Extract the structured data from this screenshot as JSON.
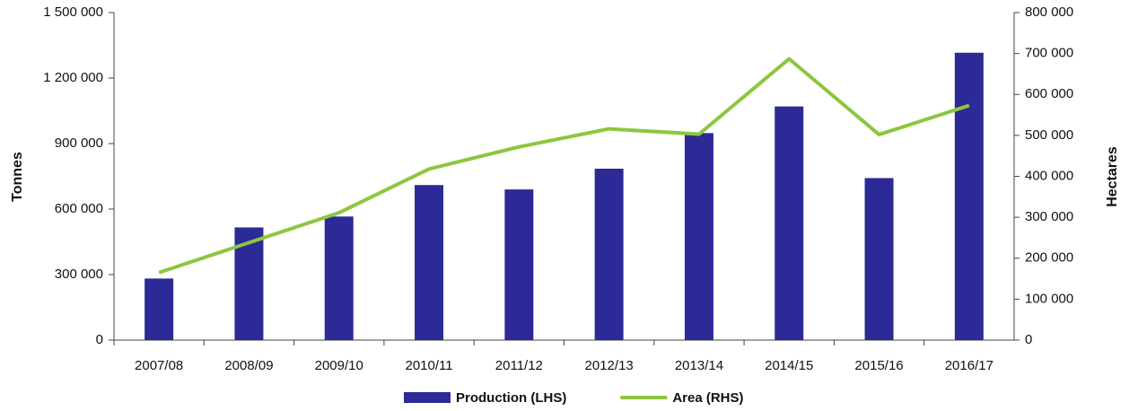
{
  "chart_data": {
    "type": "bar_line",
    "y_label": "Tonnes",
    "y2_label": "Hectares",
    "categories": [
      "2007/08",
      "2008/09",
      "2009/10",
      "2010/11",
      "2011/12",
      "2012/13",
      "2013/14",
      "2014/15",
      "2015/16",
      "2016/17"
    ],
    "series": [
      {
        "name": "Production (LHS)",
        "color": "#2c2a96",
        "type": "bar",
        "axis": "y",
        "values": [
          282000,
          516000,
          566000,
          710000,
          690000,
          785000,
          948000,
          1070000,
          742000,
          1316000
        ]
      },
      {
        "name": "Area (RHS)",
        "color": "#8dc63f",
        "type": "line",
        "axis": "y2",
        "values": [
          165000,
          238000,
          311000,
          418000,
          472000,
          516000,
          503000,
          687000,
          502000,
          573000
        ]
      }
    ],
    "ylim": [
      0,
      1500000
    ],
    "yticks": [
      0,
      {
        "value": 300000,
        "label": "300 000"
      },
      {
        "value": 600000,
        "label": "600 000"
      },
      {
        "value": 900000,
        "label": "900 000"
      },
      {
        "value": 1200000,
        "label": "1 200 000"
      },
      {
        "value": 1500000,
        "label": "1 500 000"
      }
    ],
    "y2lim": [
      0,
      800000
    ],
    "y2ticks": [
      0,
      {
        "value": 100000,
        "label": "100 000"
      },
      {
        "value": 200000,
        "label": "200 000"
      },
      {
        "value": 300000,
        "label": "300 000"
      },
      {
        "value": 400000,
        "label": "400 000"
      },
      {
        "value": 500000,
        "label": "500 000"
      },
      {
        "value": 600000,
        "label": "600 000"
      },
      {
        "value": 700000,
        "label": "700 000"
      },
      {
        "value": 800000,
        "label": "800 000"
      }
    ],
    "legend": "bottom"
  }
}
